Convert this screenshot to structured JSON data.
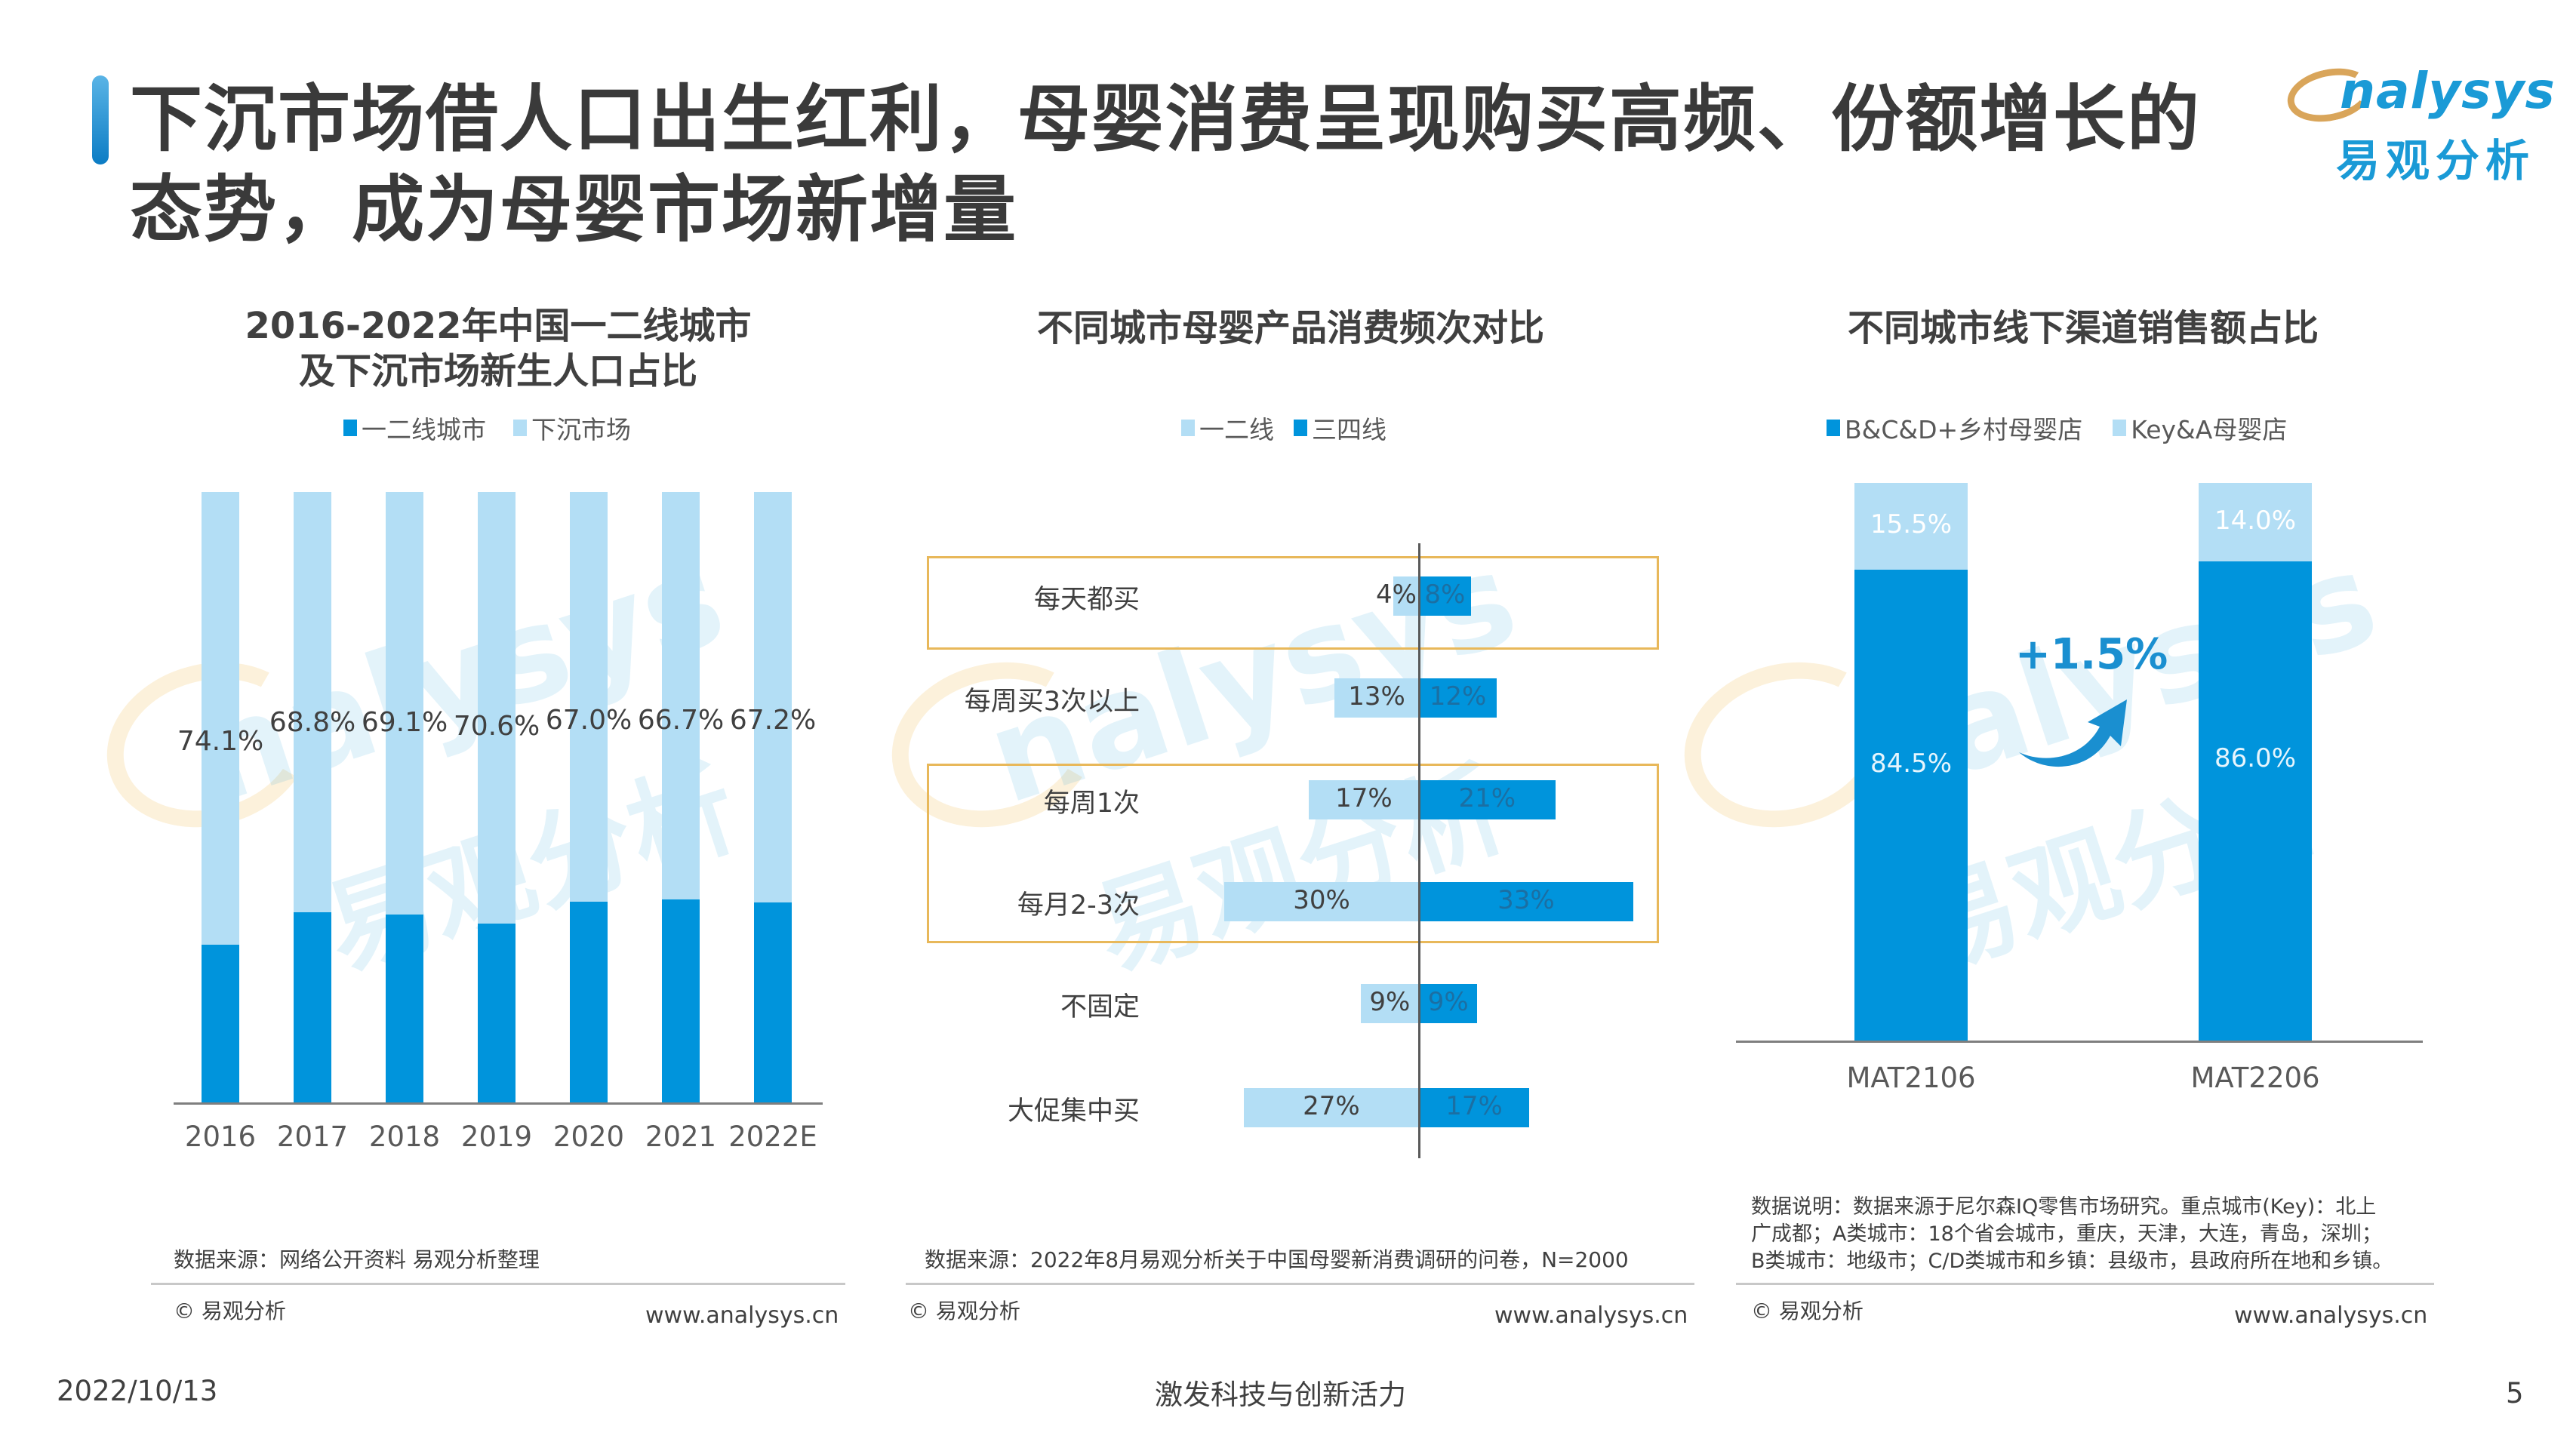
{
  "header": {
    "title_line1": "下沉市场借人口出生红利，母婴消费呈现购买高频、份额增长的",
    "title_line2": "态势，成为母婴市场新增量",
    "logo_en": "nalysys",
    "logo_cn": "易观分析"
  },
  "colors": {
    "dark_blue": "#0094dc",
    "light_blue": "#b3def5",
    "highlight_box": "#e8b85a",
    "title_text": "#3a3a3a"
  },
  "watermark": {
    "en": "nalysys",
    "cn": "易观分析"
  },
  "chart_data": [
    {
      "type": "bar",
      "stacked": true,
      "title": "2016-2022年中国一二线城市及下沉市场新生人口占比",
      "title_line1": "2016-2022年中国一二线城市",
      "title_line2": "及下沉市场新生人口占比",
      "legend": [
        "一二线城市",
        "下沉市场"
      ],
      "categories": [
        "2016",
        "2017",
        "2018",
        "2019",
        "2020",
        "2021",
        "2022E"
      ],
      "series": [
        {
          "name": "一二线城市",
          "values": [
            25.9,
            31.2,
            30.9,
            29.4,
            33.0,
            33.3,
            32.8
          ]
        },
        {
          "name": "下沉市场",
          "values": [
            74.1,
            68.8,
            69.1,
            70.6,
            67.0,
            66.7,
            67.2
          ]
        }
      ],
      "labels": [
        "74.1%",
        "68.8%",
        "69.1%",
        "70.6%",
        "67.0%",
        "66.7%",
        "67.2%"
      ],
      "ylim": [
        0,
        100
      ],
      "source": "数据来源：网络公开资料 易观分析整理",
      "copyright": "© 易观分析",
      "url": "www.analysys.cn"
    },
    {
      "type": "bar",
      "orientation": "horizontal-diverging",
      "title": "不同城市母婴产品消费频次对比",
      "legend": [
        "一二线",
        "三四线"
      ],
      "categories": [
        "每天都买",
        "每周买3次以上",
        "每周1次",
        "每月2-3次",
        "不固定",
        "大促集中买"
      ],
      "series": [
        {
          "name": "一二线",
          "values": [
            4,
            13,
            17,
            30,
            9,
            27
          ]
        },
        {
          "name": "三四线",
          "values": [
            8,
            12,
            21,
            33,
            9,
            17
          ]
        }
      ],
      "labels_left": [
        "4%",
        "13%",
        "17%",
        "30%",
        "9%",
        "27%"
      ],
      "labels_right": [
        "8%",
        "12%",
        "21%",
        "33%",
        "9%",
        "17%"
      ],
      "highlighted_groups": [
        [
          "每天都买"
        ],
        [
          "每周1次",
          "每月2-3次"
        ]
      ],
      "source": "数据来源：2022年8月易观分析关于中国母婴新消费调研的问卷，N=2000",
      "copyright": "© 易观分析",
      "url": "www.analysys.cn"
    },
    {
      "type": "bar",
      "stacked": true,
      "title": "不同城市线下渠道销售额占比",
      "legend": [
        "B&C&D+乡村母婴店",
        "Key&A母婴店"
      ],
      "categories": [
        "MAT2106",
        "MAT2206"
      ],
      "series": [
        {
          "name": "B&C&D+乡村母婴店",
          "values": [
            84.5,
            86.0
          ]
        },
        {
          "name": "Key&A母婴店",
          "values": [
            15.5,
            14.0
          ]
        }
      ],
      "labels_bottom": [
        "84.5%",
        "86.0%"
      ],
      "labels_top": [
        "15.5%",
        "14.0%"
      ],
      "annotation": "+1.5%",
      "ylim": [
        0,
        100
      ],
      "note_line1": "数据说明：数据来源于尼尔森IQ零售市场研究。重点城市(Key)：北上",
      "note_line2": "广成都；A类城市：18个省会城市，重庆，天津，大连，青岛，深圳；",
      "note_line3": "B类城市：地级市；C/D类城市和乡镇：县级市，县政府所在地和乡镇。",
      "copyright": "© 易观分析",
      "url": "www.analysys.cn"
    }
  ],
  "footer": {
    "date": "2022/10/13",
    "slogan": "激发科技与创新活力",
    "page_number": "5"
  }
}
